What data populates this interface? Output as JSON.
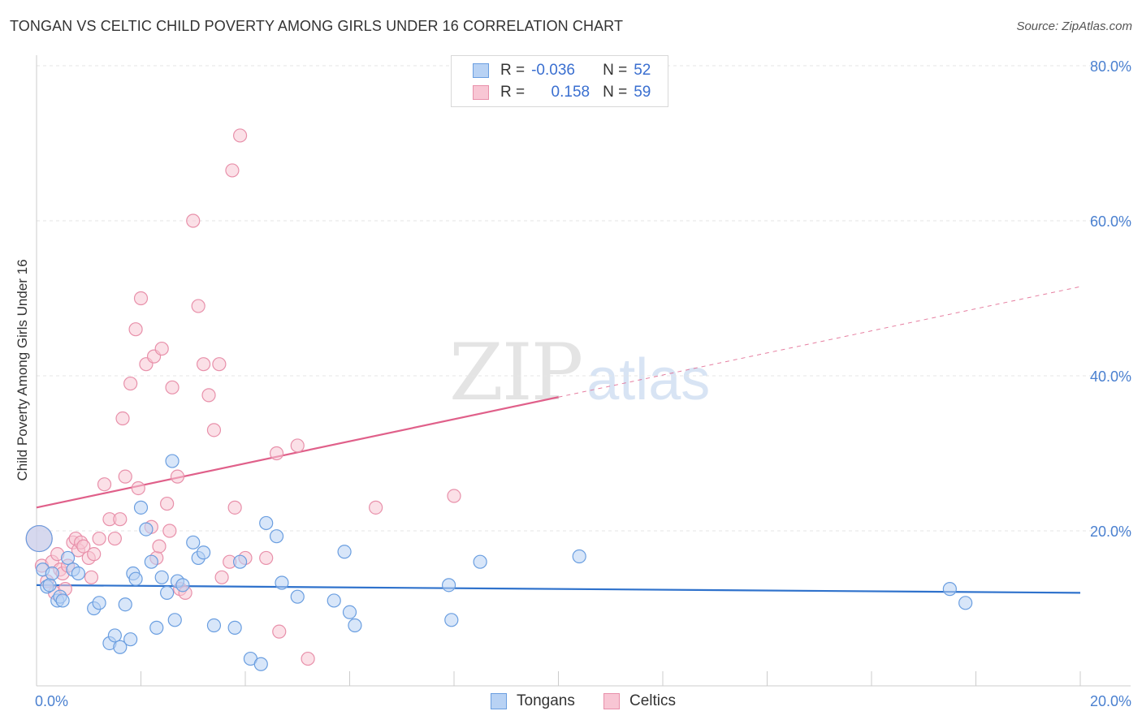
{
  "title": "TONGAN VS CELTIC CHILD POVERTY AMONG GIRLS UNDER 16 CORRELATION CHART",
  "source": "Source: ZipAtlas.com",
  "watermark": {
    "zip": "ZIP",
    "atlas": "atlas"
  },
  "legend": {
    "rows": [
      {
        "r_label": "R =",
        "r_value": "-0.036",
        "n_label": "N =",
        "n_value": "52"
      },
      {
        "r_label": "R =",
        "r_value": " 0.158",
        "n_label": "N =",
        "n_value": "59"
      }
    ]
  },
  "bottom_legend": {
    "tongans": "Tongans",
    "celtics": "Celtics"
  },
  "colors": {
    "tongans_fill": "#b8d2f4",
    "tongans_stroke": "#6a9ee0",
    "tongans_line": "#2f72cc",
    "celtics_fill": "#f8c6d4",
    "celtics_stroke": "#e890aa",
    "celtics_line": "#e0608a",
    "tick": "#4a80d0"
  },
  "chart_data": {
    "type": "scatter",
    "title": "TONGAN VS CELTIC CHILD POVERTY AMONG GIRLS UNDER 16 CORRELATION CHART",
    "xlabel": "",
    "ylabel": "Child Poverty Among Girls Under 16",
    "xlim": [
      0,
      20
    ],
    "ylim": [
      0,
      80
    ],
    "x_tick_labels": [
      "0.0%",
      "20.0%"
    ],
    "y_ticks": [
      20,
      40,
      60,
      80
    ],
    "y_tick_labels": [
      "20.0%",
      "40.0%",
      "60.0%",
      "80.0%"
    ],
    "series": [
      {
        "name": "Tongans",
        "r": -0.036,
        "n": 52,
        "trend": {
          "x0": 0,
          "y0": 13.0,
          "x1": 20,
          "y1": 12.0,
          "solid_until": 20
        },
        "points": [
          [
            0.05,
            19.0
          ],
          [
            0.12,
            15.0
          ],
          [
            0.2,
            12.8
          ],
          [
            0.25,
            13.0
          ],
          [
            0.3,
            14.5
          ],
          [
            0.4,
            11.0
          ],
          [
            0.45,
            11.5
          ],
          [
            0.5,
            11.0
          ],
          [
            0.6,
            16.5
          ],
          [
            0.7,
            15.0
          ],
          [
            0.8,
            14.5
          ],
          [
            1.1,
            10.0
          ],
          [
            1.2,
            10.7
          ],
          [
            1.4,
            5.5
          ],
          [
            1.5,
            6.5
          ],
          [
            1.6,
            5.0
          ],
          [
            1.7,
            10.5
          ],
          [
            1.8,
            6.0
          ],
          [
            1.85,
            14.5
          ],
          [
            1.9,
            13.8
          ],
          [
            2.0,
            23.0
          ],
          [
            2.1,
            20.2
          ],
          [
            2.2,
            16.0
          ],
          [
            2.3,
            7.5
          ],
          [
            2.4,
            14.0
          ],
          [
            2.5,
            12.0
          ],
          [
            2.6,
            29.0
          ],
          [
            2.65,
            8.5
          ],
          [
            2.7,
            13.5
          ],
          [
            2.8,
            13.0
          ],
          [
            3.0,
            18.5
          ],
          [
            3.1,
            16.5
          ],
          [
            3.2,
            17.2
          ],
          [
            3.4,
            7.8
          ],
          [
            3.8,
            7.5
          ],
          [
            3.9,
            16.0
          ],
          [
            4.1,
            3.5
          ],
          [
            4.3,
            2.8
          ],
          [
            4.4,
            21.0
          ],
          [
            4.6,
            19.3
          ],
          [
            4.7,
            13.3
          ],
          [
            5.0,
            11.5
          ],
          [
            5.7,
            11.0
          ],
          [
            5.9,
            17.3
          ],
          [
            6.0,
            9.5
          ],
          [
            6.1,
            7.8
          ],
          [
            7.9,
            13.0
          ],
          [
            7.95,
            8.5
          ],
          [
            8.5,
            16.0
          ],
          [
            10.4,
            16.7
          ],
          [
            17.5,
            12.5
          ],
          [
            17.8,
            10.7
          ]
        ]
      },
      {
        "name": "Celtics",
        "r": 0.158,
        "n": 59,
        "trend": {
          "x0": 0,
          "y0": 23.0,
          "x1": 20,
          "y1": 51.5,
          "solid_until": 10
        },
        "points": [
          [
            0.05,
            19.0
          ],
          [
            0.1,
            15.5
          ],
          [
            0.2,
            13.5
          ],
          [
            0.3,
            16.0
          ],
          [
            0.35,
            12.0
          ],
          [
            0.4,
            17.0
          ],
          [
            0.45,
            15.0
          ],
          [
            0.5,
            14.5
          ],
          [
            0.55,
            12.5
          ],
          [
            0.6,
            15.5
          ],
          [
            0.7,
            18.5
          ],
          [
            0.75,
            19.0
          ],
          [
            0.8,
            17.5
          ],
          [
            0.85,
            18.5
          ],
          [
            0.9,
            18.0
          ],
          [
            1.0,
            16.5
          ],
          [
            1.05,
            14.0
          ],
          [
            1.1,
            17.0
          ],
          [
            1.2,
            19.0
          ],
          [
            1.3,
            26.0
          ],
          [
            1.4,
            21.5
          ],
          [
            1.5,
            19.0
          ],
          [
            1.6,
            21.5
          ],
          [
            1.65,
            34.5
          ],
          [
            1.7,
            27.0
          ],
          [
            1.8,
            39.0
          ],
          [
            1.9,
            46.0
          ],
          [
            1.95,
            25.5
          ],
          [
            2.0,
            50.0
          ],
          [
            2.1,
            41.5
          ],
          [
            2.2,
            20.5
          ],
          [
            2.25,
            42.5
          ],
          [
            2.3,
            16.5
          ],
          [
            2.35,
            18.0
          ],
          [
            2.4,
            43.5
          ],
          [
            2.5,
            23.5
          ],
          [
            2.55,
            20.0
          ],
          [
            2.6,
            38.5
          ],
          [
            2.7,
            27.0
          ],
          [
            2.75,
            12.5
          ],
          [
            2.85,
            12.0
          ],
          [
            3.0,
            60.0
          ],
          [
            3.1,
            49.0
          ],
          [
            3.2,
            41.5
          ],
          [
            3.3,
            37.5
          ],
          [
            3.4,
            33.0
          ],
          [
            3.5,
            41.5
          ],
          [
            3.55,
            14.0
          ],
          [
            3.7,
            16.0
          ],
          [
            3.75,
            66.5
          ],
          [
            3.8,
            23.0
          ],
          [
            3.9,
            71.0
          ],
          [
            4.0,
            16.5
          ],
          [
            4.4,
            16.5
          ],
          [
            4.6,
            30.0
          ],
          [
            4.65,
            7.0
          ],
          [
            5.0,
            31.0
          ],
          [
            5.2,
            3.5
          ],
          [
            6.5,
            23.0
          ],
          [
            8.0,
            24.5
          ]
        ]
      }
    ]
  }
}
